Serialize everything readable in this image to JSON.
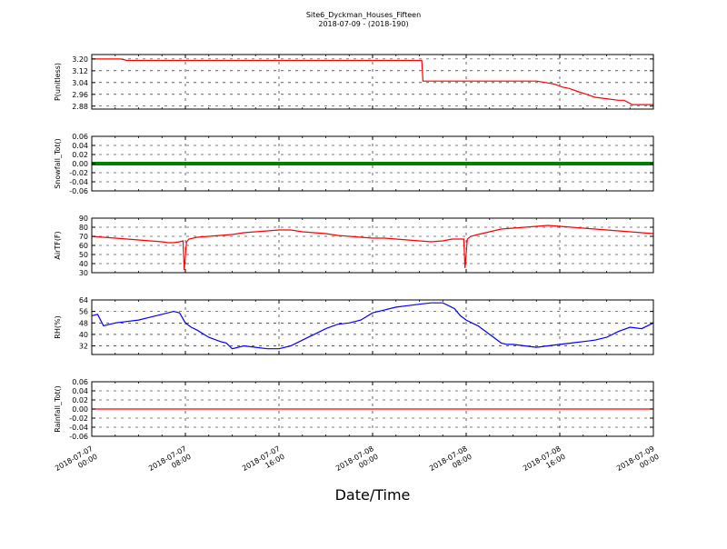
{
  "title": "Site6_Dyckman_Houses_Fifteen",
  "subtitle": "2018-07-09 - (2018-190)",
  "xlabel": "Date/Time",
  "x_ticks": [
    {
      "line1": "2018-07-07",
      "line2": "00:00",
      "hour": 0
    },
    {
      "line1": "2018-07-07",
      "line2": "08:00",
      "hour": 8
    },
    {
      "line1": "2018-07-07",
      "line2": "16:00",
      "hour": 16
    },
    {
      "line1": "2018-07-08",
      "line2": "00:00",
      "hour": 24
    },
    {
      "line1": "2018-07-08",
      "line2": "08:00",
      "hour": 32
    },
    {
      "line1": "2018-07-08",
      "line2": "16:00",
      "hour": 40
    },
    {
      "line1": "2018-07-09",
      "line2": "00:00",
      "hour": 48
    }
  ],
  "chart_data": [
    {
      "type": "line",
      "ylabel": "P(unitless)",
      "ylim": [
        2.86,
        3.23
      ],
      "yticks": [
        "3.20",
        "3.12",
        "3.04",
        "2.96",
        "2.88"
      ],
      "ytick_values": [
        3.2,
        3.12,
        3.04,
        2.96,
        2.88
      ],
      "color": "#ff0000",
      "grid": true,
      "x": [
        0,
        2.5,
        3.0,
        8,
        16,
        24,
        28.2,
        28.3,
        32,
        38,
        38.8,
        39.5,
        40.2,
        40.8,
        41.5,
        42.3,
        43.0,
        44.0,
        45.0,
        45.5,
        46.2,
        48
      ],
      "y": [
        3.2,
        3.2,
        3.19,
        3.19,
        3.19,
        3.19,
        3.19,
        3.05,
        3.05,
        3.05,
        3.04,
        3.03,
        3.01,
        3.0,
        2.98,
        2.96,
        2.94,
        2.93,
        2.92,
        2.92,
        2.89,
        2.89
      ]
    },
    {
      "type": "line",
      "ylabel": "Snowfall_Tot()",
      "ylim": [
        -0.06,
        0.06
      ],
      "yticks": [
        "0.06",
        "0.04",
        "0.02",
        "0.00",
        "-0.02",
        "-0.04",
        "-0.06"
      ],
      "ytick_values": [
        0.06,
        0.04,
        0.02,
        0.0,
        -0.02,
        -0.04,
        -0.06
      ],
      "color": "#008000",
      "grid": true,
      "marker": "thick",
      "x": [
        0,
        48
      ],
      "y": [
        0,
        0
      ]
    },
    {
      "type": "line",
      "ylabel": "AirTF(F)",
      "ylim": [
        30,
        90
      ],
      "yticks": [
        "90",
        "80",
        "70",
        "60",
        "50",
        "40",
        "30"
      ],
      "ytick_values": [
        90,
        80,
        70,
        60,
        50,
        40,
        30
      ],
      "color": "#ff0000",
      "grid": true,
      "x": [
        0,
        1,
        2,
        3,
        4,
        5,
        6,
        6.5,
        7,
        7.5,
        7.8,
        7.9,
        8.1,
        8.3,
        9,
        10,
        11,
        12,
        13,
        14,
        15,
        16,
        17,
        18,
        19,
        20,
        21,
        22,
        23,
        24,
        25,
        26,
        27,
        28,
        29,
        30,
        30.8,
        31.5,
        31.8,
        31.9,
        32.1,
        32.4,
        33,
        34,
        35,
        36,
        37,
        38,
        39,
        40,
        41,
        42,
        43,
        44,
        45,
        46,
        47,
        48
      ],
      "y": [
        70,
        69,
        68,
        67,
        66,
        65,
        64,
        63,
        63,
        64,
        65,
        33,
        64,
        67,
        69,
        70,
        71,
        72,
        74,
        75,
        76,
        77,
        77,
        75,
        74,
        73,
        71,
        70,
        69,
        68,
        68,
        67,
        66,
        65,
        64,
        65,
        67,
        67,
        67,
        35,
        67,
        70,
        72,
        75,
        78,
        79,
        80,
        81,
        82,
        81,
        80,
        79,
        78,
        77,
        76,
        75,
        74,
        73
      ]
    },
    {
      "type": "line",
      "ylabel": "RH(%)",
      "ylim": [
        26,
        64
      ],
      "yticks": [
        "64",
        "56",
        "48",
        "40",
        "32"
      ],
      "ytick_values": [
        64,
        56,
        48,
        40,
        32
      ],
      "color": "#0000ff",
      "grid": true,
      "x": [
        0,
        0.5,
        1,
        2,
        3,
        4,
        5,
        6,
        7,
        7.5,
        8,
        8.5,
        9,
        10,
        11,
        11.5,
        12,
        13,
        14,
        15,
        16,
        17,
        18,
        19,
        20,
        21,
        22,
        23,
        24,
        25,
        26,
        27,
        28,
        29,
        30,
        31,
        31.5,
        32,
        32.5,
        33,
        34,
        35,
        35.5,
        36,
        37,
        38,
        39,
        40,
        41,
        42,
        43,
        44,
        45,
        46,
        47,
        48
      ],
      "y": [
        53,
        54,
        46,
        48,
        49,
        50,
        52,
        54,
        56,
        55,
        48,
        45,
        43,
        38,
        35,
        34,
        30,
        32,
        31,
        30,
        30,
        32,
        36,
        40,
        44,
        47,
        48,
        50,
        55,
        57,
        59,
        60,
        61,
        62,
        62,
        58,
        53,
        50,
        48,
        46,
        40,
        34,
        33,
        33,
        32,
        31,
        32,
        33,
        34,
        35,
        36,
        38,
        42,
        45,
        44,
        48
      ]
    },
    {
      "type": "line",
      "ylabel": "Rainfall_Tot()",
      "ylim": [
        -0.06,
        0.06
      ],
      "yticks": [
        "0.06",
        "0.04",
        "0.02",
        "0.00",
        "-0.02",
        "-0.04",
        "-0.06"
      ],
      "ytick_values": [
        0.06,
        0.04,
        0.02,
        0.0,
        -0.02,
        -0.04,
        -0.06
      ],
      "color": "#ff0000",
      "grid": true,
      "x": [
        0,
        48
      ],
      "y": [
        0,
        0
      ]
    }
  ]
}
